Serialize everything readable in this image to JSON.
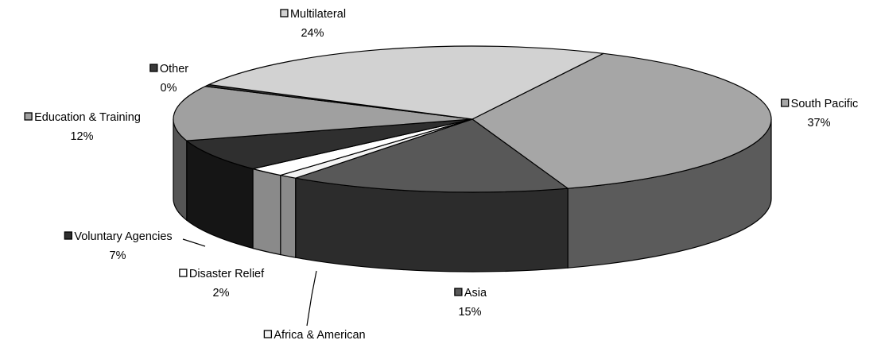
{
  "chart_data": {
    "type": "pie",
    "style": "3d",
    "title": "",
    "series": [
      {
        "label": "South Pacific",
        "value": 37,
        "pct_label": "37%",
        "color": "#a6a6a6",
        "side_color": "#5b5b5b"
      },
      {
        "label": "Asia",
        "value": 15,
        "pct_label": "15%",
        "color": "#585858",
        "side_color": "#2c2c2c"
      },
      {
        "label": "Africa & American",
        "value": 1,
        "pct_label": "",
        "color": "#f2f2f2",
        "side_color": "#8a8a8a"
      },
      {
        "label": "Disaster Relief",
        "value": 2,
        "pct_label": "2%",
        "color": "#ffffff",
        "side_color": "#8a8a8a"
      },
      {
        "label": "Voluntary Agencies",
        "value": 7,
        "pct_label": "7%",
        "color": "#2f2f2f",
        "side_color": "#151515"
      },
      {
        "label": "Education & Training",
        "value": 12,
        "pct_label": "12%",
        "color": "#a0a0a0",
        "side_color": "#555555"
      },
      {
        "label": "Other",
        "value": 0.4,
        "pct_label": "0%",
        "color": "#3a3a3a",
        "side_color": "#1e1e1e"
      },
      {
        "label": "Multilateral",
        "value": 24,
        "pct_label": "24%",
        "color": "#d2d2d2",
        "side_color": "#6d6d6d"
      }
    ],
    "legend": "labels placed beside slices with color squares"
  }
}
